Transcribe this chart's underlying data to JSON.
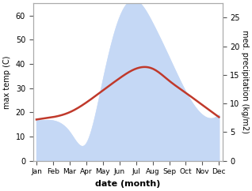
{
  "months": [
    "Jan",
    "Feb",
    "Mar",
    "Apr",
    "May",
    "Jun",
    "Jul",
    "Aug",
    "Sep",
    "Oct",
    "Nov",
    "Dec"
  ],
  "max_temp": [
    17,
    18,
    20,
    24,
    29,
    34,
    38,
    38,
    33,
    28,
    23,
    18
  ],
  "precipitation": [
    7,
    7,
    5,
    3,
    14,
    25,
    28,
    24,
    18,
    12,
    8,
    8
  ],
  "temp_color": "#c0392b",
  "precip_fill_color": "#c5d8f5",
  "left_ylabel": "max temp (C)",
  "right_ylabel": "med. precipitation (kg/m2)",
  "xlabel": "date (month)",
  "left_ylim": [
    0,
    65
  ],
  "right_ylim": [
    0,
    27.5
  ],
  "left_yticks": [
    0,
    10,
    20,
    30,
    40,
    50,
    60
  ],
  "right_yticks": [
    0,
    5,
    10,
    15,
    20,
    25
  ],
  "bg_color": "#ffffff"
}
